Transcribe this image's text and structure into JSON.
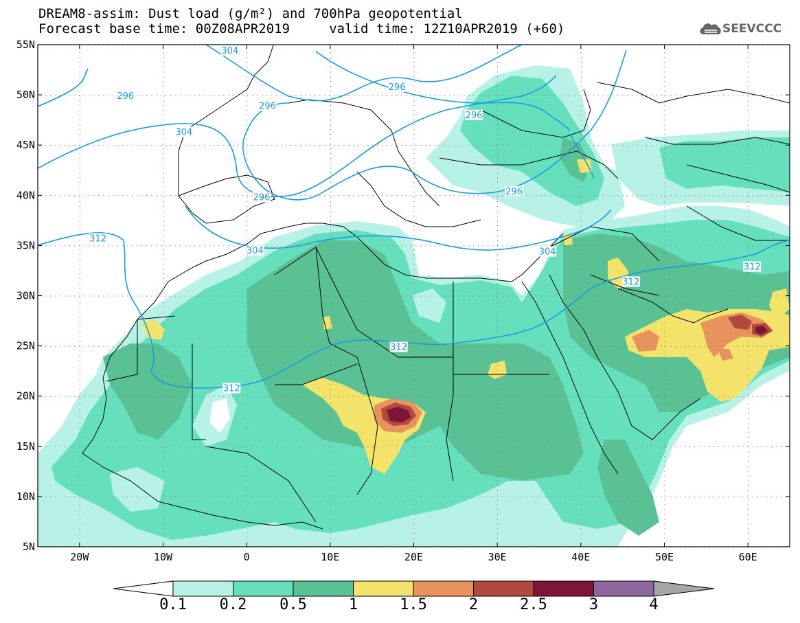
{
  "title": {
    "line1": "DREAM8-assim: Dust load (g/m²) and 700hPa geopotential",
    "line2": "Forecast base time: 00Z08APR2019     valid time: 12Z10APR2019 (+60)"
  },
  "logo": {
    "text": "SEEVCCC",
    "icon": "cloud-icon"
  },
  "axes": {
    "lat_labels": [
      "55N",
      "50N",
      "45N",
      "40N",
      "35N",
      "30N",
      "25N",
      "20N",
      "15N",
      "10N",
      "5N"
    ],
    "lon_labels": [
      "20W",
      "10W",
      "0",
      "10E",
      "20E",
      "30E",
      "40E",
      "50E",
      "60E"
    ],
    "lon_values": [
      -20,
      -10,
      0,
      10,
      20,
      30,
      40,
      50,
      60
    ],
    "lat_values": [
      55,
      50,
      45,
      40,
      35,
      30,
      25,
      20,
      15,
      10,
      5
    ],
    "lon_range": [
      -25,
      65
    ],
    "lat_range": [
      5,
      55
    ]
  },
  "contours": {
    "color": "#1a9be0",
    "labels": [
      {
        "text": "304",
        "lon": -2,
        "lat": 54.3
      },
      {
        "text": "296",
        "lon": -14.5,
        "lat": 49.8
      },
      {
        "text": "304",
        "lon": -7.5,
        "lat": 46.2
      },
      {
        "text": "296",
        "lon": 2.5,
        "lat": 48.8
      },
      {
        "text": "296",
        "lon": 18,
        "lat": 50.7
      },
      {
        "text": "296",
        "lon": 27.2,
        "lat": 47.9
      },
      {
        "text": "296",
        "lon": 1.8,
        "lat": 39.7
      },
      {
        "text": "296",
        "lon": 32,
        "lat": 40.3
      },
      {
        "text": "312",
        "lon": -17.8,
        "lat": 35.6
      },
      {
        "text": "304",
        "lon": 1,
        "lat": 34.4
      },
      {
        "text": "304",
        "lon": 36,
        "lat": 34.3
      },
      {
        "text": "312",
        "lon": 46,
        "lat": 31.3
      },
      {
        "text": "312",
        "lon": 60.5,
        "lat": 32.8
      },
      {
        "text": "312",
        "lon": 18.2,
        "lat": 24.8
      },
      {
        "text": "312",
        "lon": -1.8,
        "lat": 20.7
      }
    ]
  },
  "colorbar": {
    "levels": [
      "0.1",
      "0.2",
      "0.5",
      "1",
      "1.5",
      "2",
      "2.5",
      "3",
      "4"
    ],
    "colors": [
      "#b8f2e6",
      "#66e0bc",
      "#5ac195",
      "#f3e36a",
      "#e8935e",
      "#b14a3c",
      "#7d1538",
      "#8d689e"
    ],
    "under_color": "#ffffff",
    "over_color": "#a6a6a6"
  },
  "legend_colors": {
    "land_background": "#ffffff",
    "coastline": "#000000"
  }
}
